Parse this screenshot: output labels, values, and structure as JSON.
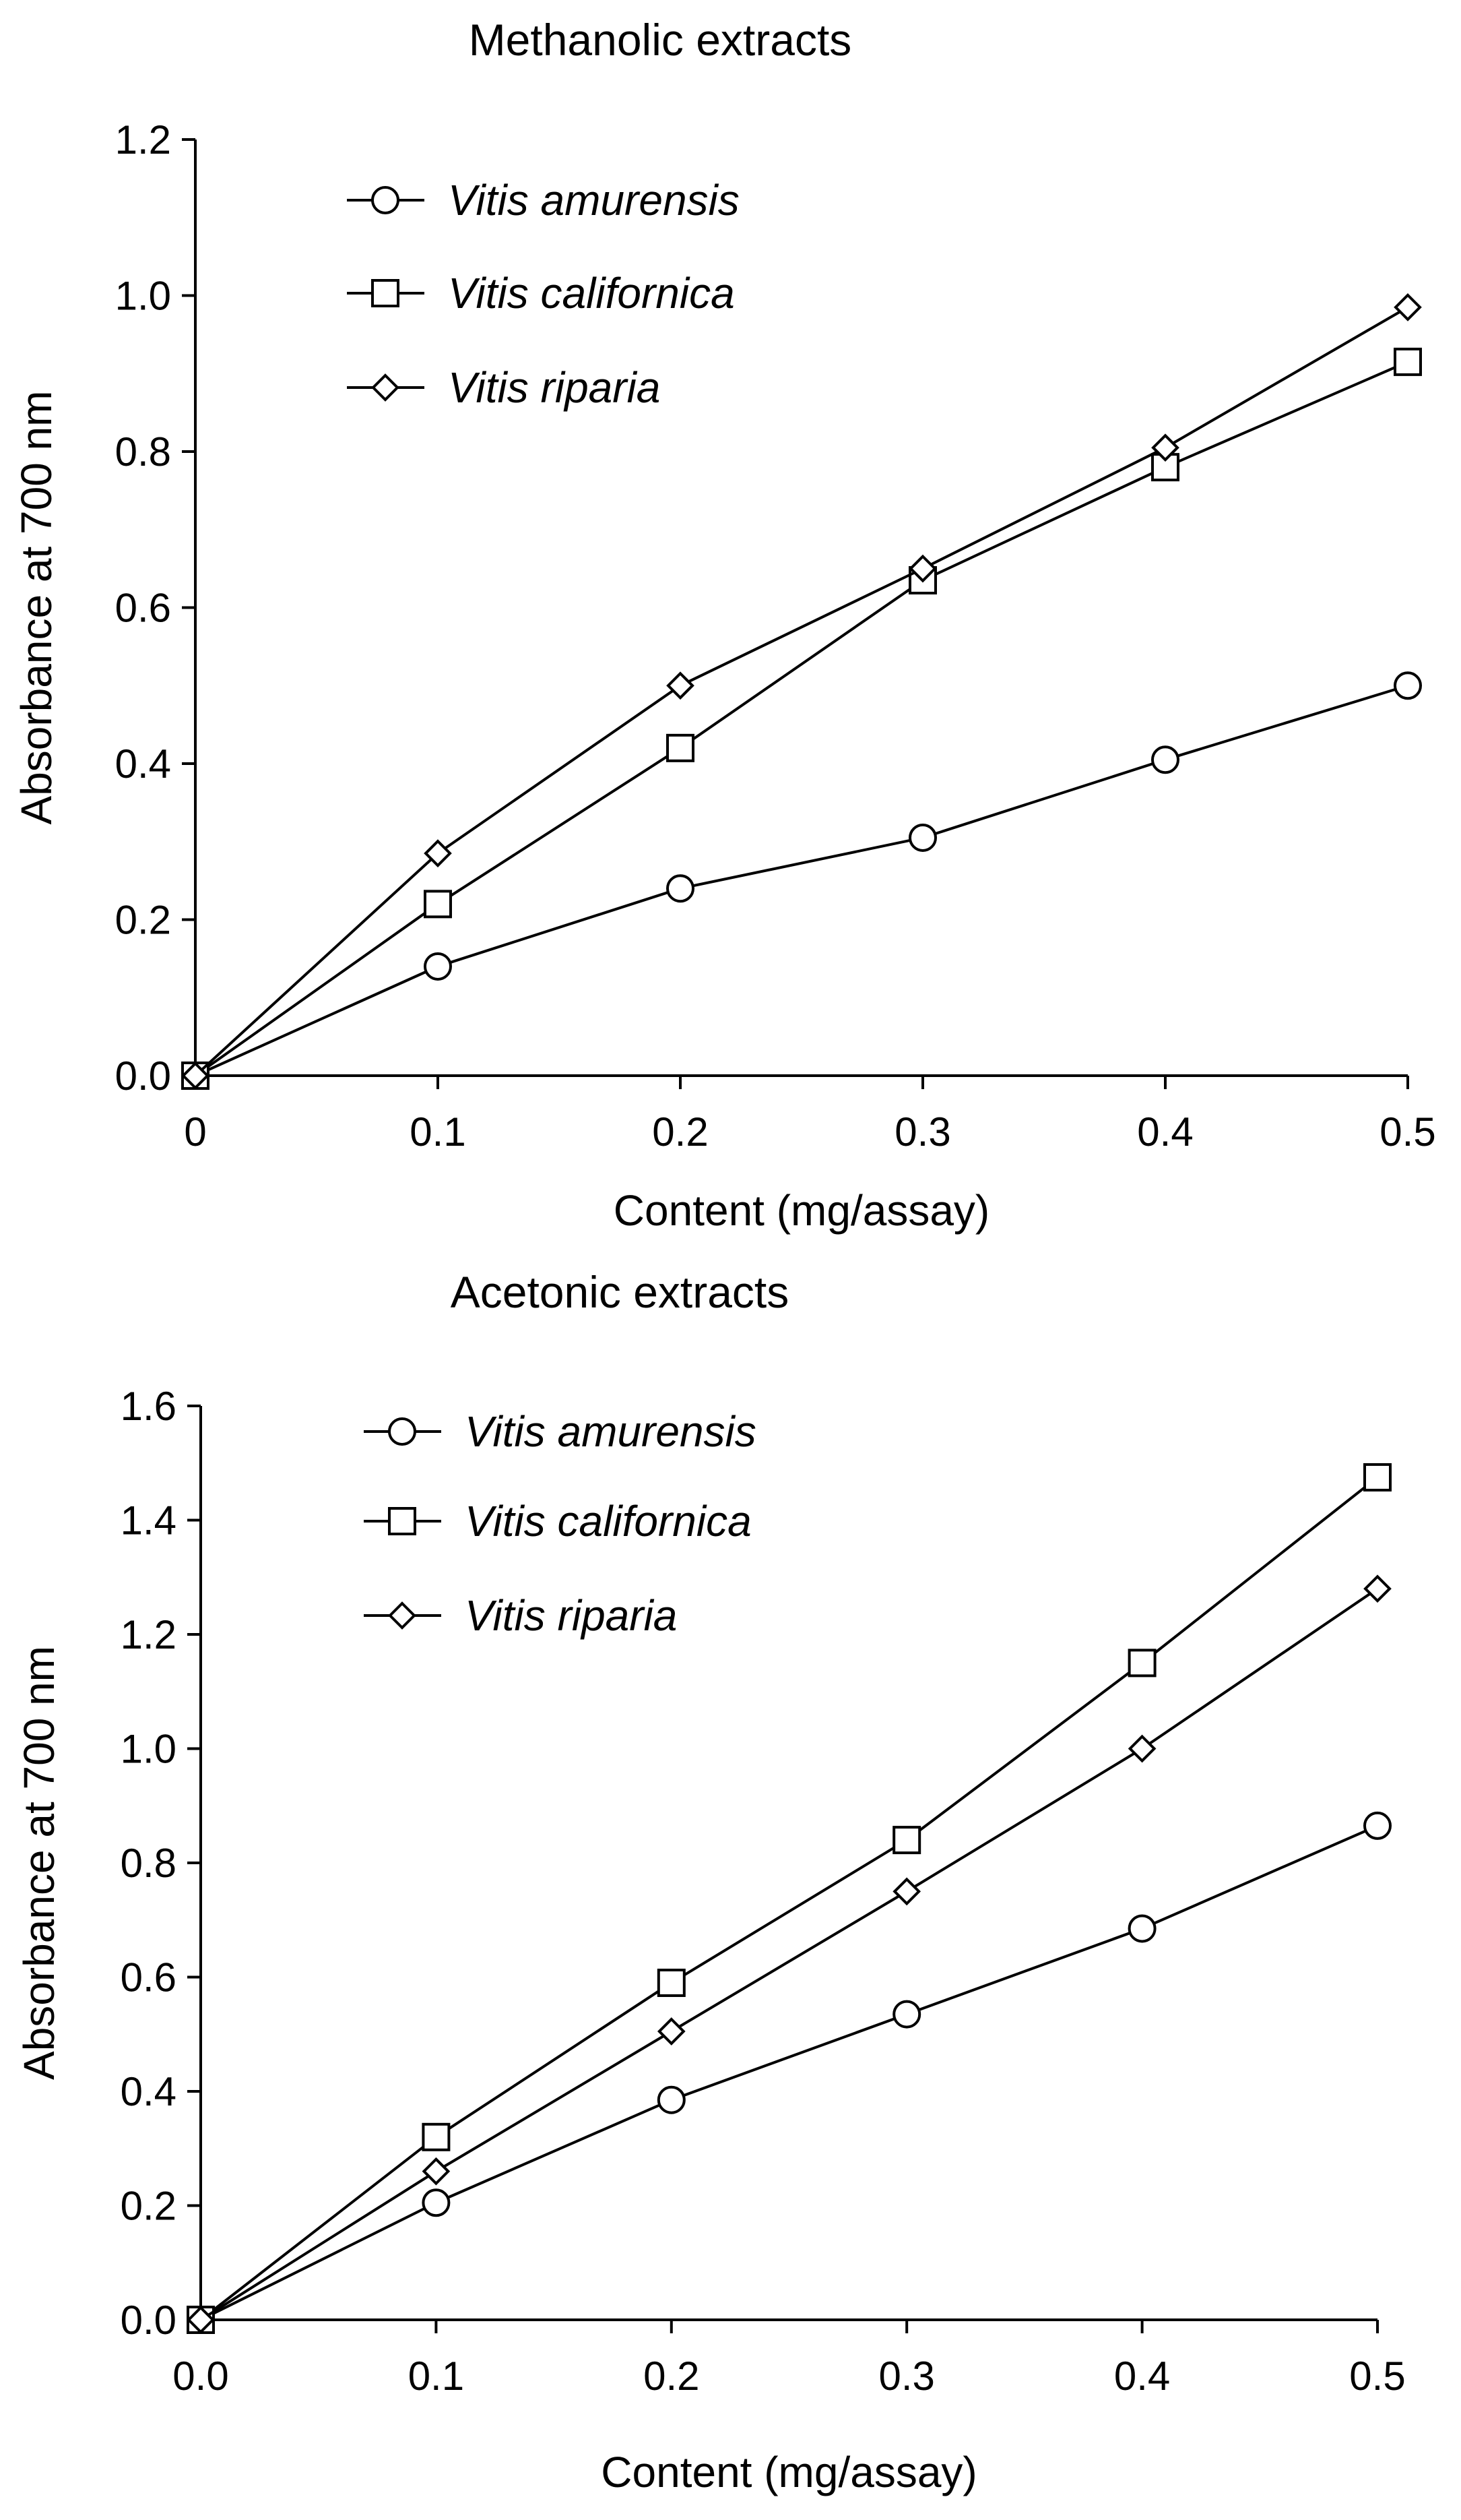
{
  "chart_data": [
    {
      "type": "line",
      "title": "Methanolic extracts",
      "xlabel": "Content (mg/assay)",
      "ylabel": "Absorbance at 700 nm",
      "x": [
        0,
        0.1,
        0.2,
        0.3,
        0.4,
        0.5
      ],
      "xticks": [
        "0",
        "0.1",
        "0.2",
        "0.3",
        "0.4",
        "0.5"
      ],
      "xlim": [
        0,
        0.5
      ],
      "ylim": [
        0,
        1.2
      ],
      "yticks": [
        "0.0",
        "0.2",
        "0.4",
        "0.6",
        "0.8",
        "1.0",
        "1.2"
      ],
      "grid": false,
      "legend_position": "top-left",
      "series": [
        {
          "name": "Vitis amurensis",
          "marker": "circle",
          "values": [
            0,
            0.14,
            0.24,
            0.305,
            0.405,
            0.5
          ]
        },
        {
          "name": "Vitis californica",
          "marker": "square",
          "values": [
            0,
            0.22,
            0.42,
            0.635,
            0.78,
            0.915
          ]
        },
        {
          "name": "Vitis riparia",
          "marker": "diamond",
          "values": [
            0,
            0.285,
            0.5,
            0.65,
            0.805,
            0.985
          ]
        }
      ]
    },
    {
      "type": "line",
      "title": "Acetonic extracts",
      "xlabel": "Content (mg/assay)",
      "ylabel": "Absorbance at 700 nm",
      "x": [
        0,
        0.1,
        0.2,
        0.3,
        0.4,
        0.5
      ],
      "xticks": [
        "0.0",
        "0.1",
        "0.2",
        "0.3",
        "0.4",
        "0.5"
      ],
      "xlim": [
        0,
        0.5
      ],
      "ylim": [
        0,
        1.6
      ],
      "yticks": [
        "0.0",
        "0.2",
        "0.4",
        "0.6",
        "0.8",
        "1.0",
        "1.2",
        "1.4",
        "1.6"
      ],
      "grid": false,
      "legend_position": "top-left",
      "series": [
        {
          "name": "Vitis amurensis",
          "marker": "circle",
          "values": [
            0,
            0.205,
            0.385,
            0.535,
            0.685,
            0.865
          ]
        },
        {
          "name": "Vitis californica",
          "marker": "square",
          "values": [
            0,
            0.32,
            0.59,
            0.84,
            1.15,
            1.475
          ]
        },
        {
          "name": "Vitis riparia",
          "marker": "diamond",
          "values": [
            0,
            0.26,
            0.505,
            0.75,
            1.0,
            1.28
          ]
        }
      ]
    }
  ]
}
